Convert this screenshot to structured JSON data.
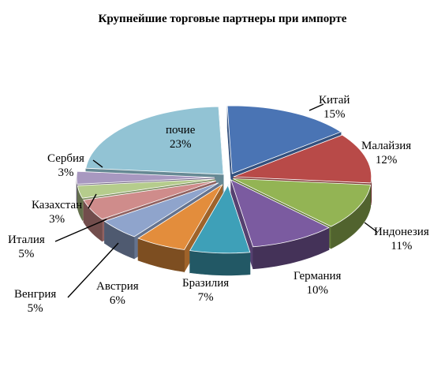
{
  "chart_data": {
    "type": "pie",
    "title": "Крупнейшие торговые партнеры при импорте",
    "slices": [
      {
        "label": "Китай",
        "value": 15,
        "value_label": "15%",
        "color": "#4a74b4"
      },
      {
        "label": "Малайзия",
        "value": 12,
        "value_label": "12%",
        "color": "#b84a48"
      },
      {
        "label": "Индонезия",
        "value": 11,
        "value_label": "11%",
        "color": "#93b454"
      },
      {
        "label": "Германия",
        "value": 10,
        "value_label": "10%",
        "color": "#7b5ba0"
      },
      {
        "label": "Бразилия",
        "value": 7,
        "value_label": "7%",
        "color": "#3ea0b8"
      },
      {
        "label": "Австрия",
        "value": 6,
        "value_label": "6%",
        "color": "#e38d3c"
      },
      {
        "label": "Венгрия",
        "value": 5,
        "value_label": "5%",
        "color": "#8fa4cc"
      },
      {
        "label": "Италия",
        "value": 5,
        "value_label": "5%",
        "color": "#cf8c8b"
      },
      {
        "label": "Казахстан",
        "value": 3,
        "value_label": "3%",
        "color": "#b5cc8c"
      },
      {
        "label": "Сербия",
        "value": 3,
        "value_label": "3%",
        "color": "#a898c0"
      },
      {
        "label": "почие",
        "value": 23,
        "value_label": "23%",
        "color": "#92c3d4"
      }
    ],
    "exploded": true,
    "three_d": true,
    "legend": "none",
    "labels": "outside-with-leader-lines"
  }
}
